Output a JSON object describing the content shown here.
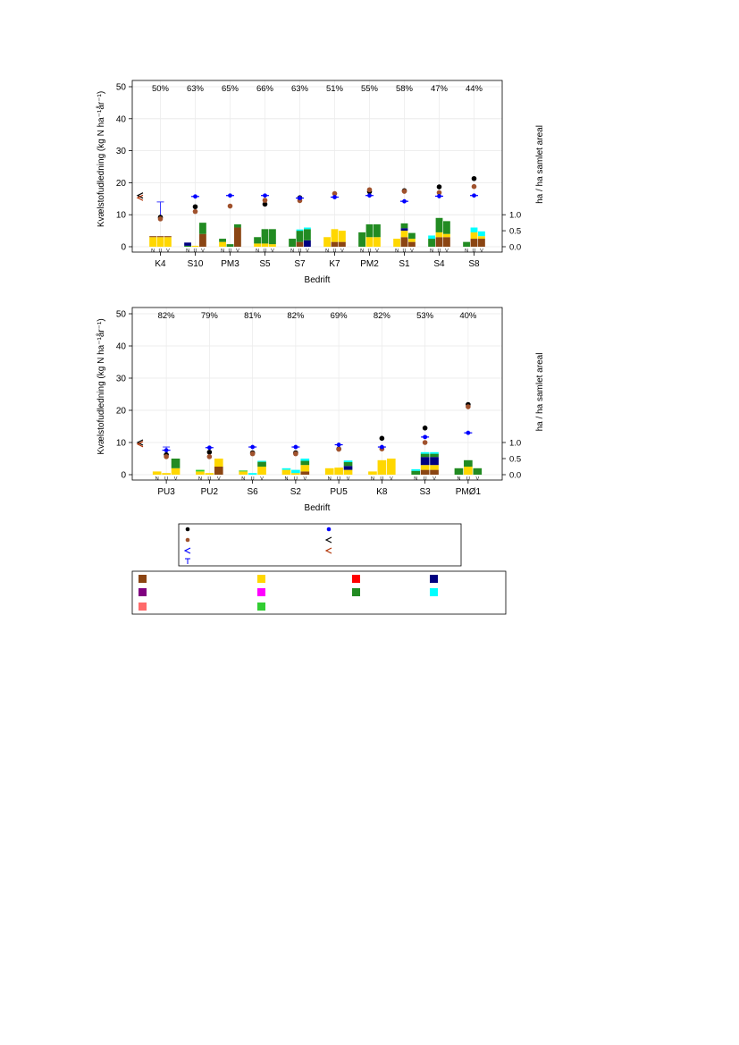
{
  "colors": {
    "brown": "#8B4513",
    "yellow": "#FFD700",
    "red": "#FF0000",
    "navy": "#000080",
    "purple": "#800080",
    "magenta": "#FF00FF",
    "green": "#228B22",
    "cyan": "#00FFFF",
    "salmon": "#FF6A6A",
    "limegreen": "#32CD32",
    "black": "#000000",
    "blue": "#0000FF",
    "dot_brown": "#A0522D",
    "rust": "#B03000"
  },
  "chart_data": [
    {
      "type": "bar",
      "ylabel": "Kvælstofudledning (kg N ha⁻¹år⁻¹)",
      "y2label": "ha / ha samlet areal",
      "xlabel": "Bedrift",
      "ylim": [
        0,
        50
      ],
      "yticks": [
        "0",
        "10",
        "20",
        "30",
        "40",
        "50"
      ],
      "y2ticks": [
        "0.0",
        "0.5",
        "1.0"
      ],
      "bar_sublabels": [
        "N",
        "U",
        "V"
      ],
      "categories": [
        "K4",
        "S10",
        "PM3",
        "S5",
        "S7",
        "K7",
        "PM2",
        "S1",
        "S4",
        "S8"
      ],
      "percent_labels": [
        "50%",
        "63%",
        "65%",
        "66%",
        "63%",
        "51%",
        "55%",
        "58%",
        "47%",
        "44%"
      ],
      "bars": [
        [
          [
            [
              "yellow",
              3.0
            ],
            [
              "brown",
              0.3
            ]
          ],
          [
            [
              "yellow",
              3.0
            ],
            [
              "brown",
              0.3
            ]
          ],
          [
            [
              "yellow",
              3.0
            ],
            [
              "brown",
              0.3
            ]
          ]
        ],
        [
          [
            [
              "green",
              0.3
            ],
            [
              "navy",
              1.0
            ]
          ],
          [
            [
              "yellow",
              0.3
            ]
          ],
          [
            [
              "brown",
              4.0
            ],
            [
              "green",
              3.5
            ]
          ]
        ],
        [
          [
            [
              "yellow",
              1.5
            ],
            [
              "green",
              1.0
            ]
          ],
          [
            [
              "green",
              0.8
            ]
          ],
          [
            [
              "brown",
              6.0
            ],
            [
              "green",
              1.0
            ]
          ]
        ],
        [
          [
            [
              "yellow",
              1.0
            ],
            [
              "green",
              2.0
            ]
          ],
          [
            [
              "yellow",
              1.0
            ],
            [
              "green",
              4.5
            ]
          ],
          [
            [
              "yellow",
              0.8
            ],
            [
              "green",
              4.7
            ]
          ]
        ],
        [
          [
            [
              "green",
              2.5
            ]
          ],
          [
            [
              "brown",
              1.5
            ],
            [
              "green",
              3.5
            ],
            [
              "cyan",
              0.4
            ]
          ],
          [
            [
              "navy",
              2.0
            ],
            [
              "green",
              3.5
            ],
            [
              "cyan",
              0.5
            ]
          ]
        ],
        [
          [
            [
              "yellow",
              3.0
            ]
          ],
          [
            [
              "brown",
              1.5
            ],
            [
              "yellow",
              4.0
            ]
          ],
          [
            [
              "brown",
              1.5
            ],
            [
              "yellow",
              3.5
            ]
          ]
        ],
        [
          [
            [
              "green",
              4.5
            ]
          ],
          [
            [
              "yellow",
              3.0
            ],
            [
              "green",
              4.0
            ]
          ],
          [
            [
              "yellow",
              3.0
            ],
            [
              "green",
              4.0
            ]
          ]
        ],
        [
          [
            [
              "yellow",
              2.5
            ]
          ],
          [
            [
              "brown",
              3.0
            ],
            [
              "yellow",
              2.0
            ],
            [
              "navy",
              0.8
            ],
            [
              "green",
              1.5
            ]
          ],
          [
            [
              "brown",
              1.5
            ],
            [
              "yellow",
              1.0
            ],
            [
              "green",
              1.8
            ]
          ]
        ],
        [
          [
            [
              "green",
              2.5
            ],
            [
              "cyan",
              1.0
            ]
          ],
          [
            [
              "brown",
              3.0
            ],
            [
              "yellow",
              1.5
            ],
            [
              "green",
              4.5
            ]
          ],
          [
            [
              "brown",
              3.0
            ],
            [
              "yellow",
              1.0
            ],
            [
              "green",
              4.0
            ]
          ]
        ],
        [
          [
            [
              "green",
              1.5
            ]
          ],
          [
            [
              "brown",
              2.5
            ],
            [
              "yellow",
              2.0
            ],
            [
              "cyan",
              1.5
            ]
          ],
          [
            [
              "brown",
              2.5
            ],
            [
              "yellow",
              0.8
            ],
            [
              "cyan",
              1.5
            ]
          ]
        ]
      ],
      "black_dots": [
        9.2,
        12.5,
        null,
        13.3,
        15.3,
        null,
        17.2,
        17.5,
        18.7,
        21.3
      ],
      "brown_dots": [
        8.7,
        11.0,
        12.7,
        14.5,
        14.4,
        16.6,
        17.8,
        17.3,
        16.9,
        18.8
      ],
      "blue_marks": [
        null,
        15.7,
        16.0,
        16.0,
        15.2,
        15.5,
        16.0,
        14.2,
        15.8,
        16.0
      ],
      "error_bar": {
        "category": "K4",
        "low": 8.5,
        "high": 14.0
      },
      "left_marks": [
        {
          "glyph": "<",
          "color": "black",
          "value": 16.0
        },
        {
          "glyph": "<",
          "color": "rust",
          "value": 15.3
        }
      ]
    },
    {
      "type": "bar",
      "ylabel": "Kvælstofudledning (kg N ha⁻¹år⁻¹)",
      "y2label": "ha / ha samlet areal",
      "xlabel": "Bedrift",
      "ylim": [
        0,
        50
      ],
      "yticks": [
        "0",
        "10",
        "20",
        "30",
        "40",
        "50"
      ],
      "y2ticks": [
        "0.0",
        "0.5",
        "1.0"
      ],
      "bar_sublabels": [
        "N",
        "U",
        "V"
      ],
      "categories": [
        "PU3",
        "PU2",
        "S6",
        "S2",
        "PU5",
        "K8",
        "S3",
        "PMØ1"
      ],
      "percent_labels": [
        "82%",
        "79%",
        "81%",
        "82%",
        "69%",
        "82%",
        "53%",
        "40%"
      ],
      "bars": [
        [
          [
            [
              "yellow",
              1.0
            ]
          ],
          [
            [
              "yellow",
              0.5
            ]
          ],
          [
            [
              "yellow",
              2.0
            ],
            [
              "green",
              3.0
            ]
          ]
        ],
        [
          [
            [
              "yellow",
              1.0
            ],
            [
              "limegreen",
              0.5
            ]
          ],
          [
            [
              "yellow",
              0.5
            ]
          ],
          [
            [
              "brown",
              2.5
            ],
            [
              "yellow",
              2.5
            ]
          ]
        ],
        [
          [
            [
              "yellow",
              1.0
            ],
            [
              "limegreen",
              0.3
            ]
          ],
          [
            [
              "cyan",
              0.5
            ]
          ],
          [
            [
              "yellow",
              2.5
            ],
            [
              "green",
              1.5
            ],
            [
              "cyan",
              0.3
            ]
          ]
        ],
        [
          [
            [
              "yellow",
              1.5
            ],
            [
              "cyan",
              0.5
            ]
          ],
          [
            [
              "yellow",
              0.5
            ],
            [
              "cyan",
              1.0
            ]
          ],
          [
            [
              "brown",
              1.0
            ],
            [
              "yellow",
              2.0
            ],
            [
              "green",
              1.3
            ],
            [
              "cyan",
              0.7
            ]
          ]
        ],
        [
          [
            [
              "yellow",
              2.0
            ]
          ],
          [
            [
              "yellow",
              2.2
            ]
          ],
          [
            [
              "yellow",
              1.5
            ],
            [
              "navy",
              1.2
            ],
            [
              "green",
              1.2
            ],
            [
              "cyan",
              0.5
            ]
          ]
        ],
        [
          [
            [
              "yellow",
              1.0
            ]
          ],
          [
            [
              "yellow",
              4.5
            ]
          ],
          [
            [
              "yellow",
              5.0
            ]
          ]
        ],
        [
          [
            [
              "green",
              1.2
            ],
            [
              "cyan",
              0.5
            ]
          ],
          [
            [
              "brown",
              1.5
            ],
            [
              "yellow",
              1.5
            ],
            [
              "navy",
              2.5
            ],
            [
              "green",
              1.0
            ],
            [
              "cyan",
              0.5
            ]
          ],
          [
            [
              "brown",
              1.5
            ],
            [
              "yellow",
              1.5
            ],
            [
              "navy",
              2.5
            ],
            [
              "green",
              1.0
            ],
            [
              "cyan",
              0.5
            ]
          ]
        ],
        [
          [
            [
              "green",
              2.0
            ]
          ],
          [
            [
              "yellow",
              2.5
            ],
            [
              "green",
              2.0
            ]
          ],
          [
            [
              "green",
              2.0
            ]
          ]
        ]
      ],
      "black_dots": [
        6.2,
        7.0,
        6.8,
        6.8,
        8.0,
        11.3,
        14.5,
        21.8
      ],
      "brown_dots": [
        5.6,
        5.6,
        6.5,
        6.5,
        7.9,
        8.0,
        10.0,
        21.1
      ],
      "blue_marks": [
        7.6,
        8.4,
        8.6,
        8.6,
        9.3,
        8.6,
        11.7,
        13.0
      ],
      "error_bar": {
        "category": "PU3",
        "low": 7.5,
        "high": 8.6
      },
      "left_marks": [
        {
          "glyph": "<",
          "color": "black",
          "value": 10.0
        },
        {
          "glyph": "<",
          "color": "rust",
          "value": 9.5
        }
      ]
    }
  ],
  "legend_symbols": [
    {
      "glyph": "●",
      "color": "black"
    },
    {
      "glyph": "●",
      "color": "blue"
    },
    {
      "glyph": "●",
      "color": "dot_brown"
    },
    {
      "glyph": "<",
      "color": "black"
    },
    {
      "glyph": "<",
      "color": "blue"
    },
    {
      "glyph": "<",
      "color": "rust"
    },
    {
      "glyph": "⊤",
      "color": "blue"
    }
  ],
  "legend_colors": [
    "brown",
    "yellow",
    "red",
    "navy",
    "purple",
    "magenta",
    "green",
    "cyan",
    "salmon",
    "limegreen"
  ]
}
